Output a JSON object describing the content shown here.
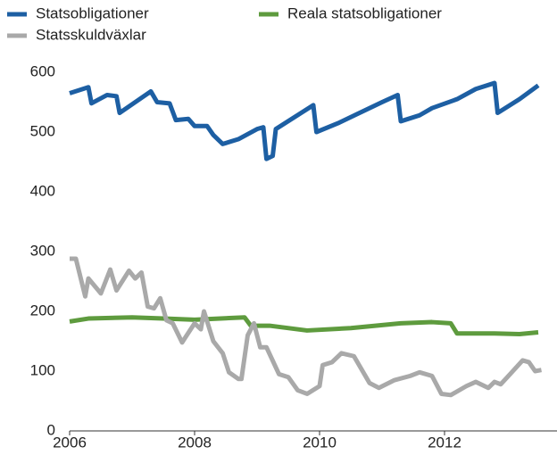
{
  "chart_data": {
    "type": "line",
    "series": [
      {
        "name": "Statsobligationer",
        "color": "#1d5fa3",
        "x": [
          2006,
          2006.3,
          2006.35,
          2006.6,
          2006.75,
          2006.8,
          2007.3,
          2007.4,
          2007.6,
          2007.7,
          2007.9,
          2008,
          2008.2,
          2008.3,
          2008.45,
          2008.7,
          2009,
          2009.1,
          2009.15,
          2009.25,
          2009.3,
          2009.6,
          2009.9,
          2009.95,
          2010.3,
          2010.6,
          2011,
          2011.25,
          2011.3,
          2011.6,
          2011.8,
          2012.2,
          2012.5,
          2012.8,
          2012.85,
          2013.2,
          2013.5
        ],
        "values": [
          565,
          575,
          548,
          562,
          560,
          532,
          568,
          550,
          548,
          520,
          522,
          510,
          510,
          495,
          480,
          488,
          505,
          508,
          455,
          460,
          505,
          525,
          545,
          500,
          515,
          530,
          550,
          562,
          518,
          528,
          540,
          555,
          572,
          582,
          532,
          555,
          578
        ]
      },
      {
        "name": "Reala statsobligationer",
        "color": "#5e9b3e",
        "x": [
          2006,
          2006.3,
          2007,
          2007.5,
          2008,
          2008.8,
          2008.9,
          2009.2,
          2009.8,
          2010.5,
          2011.3,
          2011.8,
          2012.1,
          2012.2,
          2012.8,
          2013.2,
          2013.5
        ],
        "values": [
          183,
          188,
          190,
          188,
          186,
          190,
          176,
          176,
          168,
          172,
          180,
          182,
          180,
          163,
          163,
          162,
          165
        ]
      },
      {
        "name": "Statsskuldväxlar",
        "color": "#a9a9a9",
        "x": [
          2006,
          2006.1,
          2006.25,
          2006.3,
          2006.5,
          2006.65,
          2006.75,
          2006.95,
          2007.05,
          2007.15,
          2007.25,
          2007.35,
          2007.45,
          2007.55,
          2007.65,
          2007.8,
          2008,
          2008.1,
          2008.15,
          2008.3,
          2008.45,
          2008.55,
          2008.7,
          2008.75,
          2008.85,
          2008.95,
          2009.05,
          2009.15,
          2009.35,
          2009.5,
          2009.65,
          2009.8,
          2010,
          2010.05,
          2010.2,
          2010.35,
          2010.55,
          2010.8,
          2010.95,
          2011.2,
          2011.45,
          2011.6,
          2011.8,
          2011.95,
          2012.1,
          2012.35,
          2012.5,
          2012.7,
          2012.8,
          2012.9,
          2013.05,
          2013.25,
          2013.35,
          2013.45,
          2013.55
        ],
        "values": [
          288,
          288,
          225,
          255,
          230,
          270,
          235,
          268,
          255,
          265,
          208,
          205,
          222,
          185,
          180,
          148,
          180,
          170,
          200,
          150,
          130,
          98,
          87,
          87,
          160,
          180,
          140,
          140,
          95,
          90,
          68,
          62,
          75,
          110,
          115,
          130,
          125,
          80,
          72,
          85,
          92,
          98,
          92,
          62,
          60,
          75,
          82,
          72,
          82,
          78,
          95,
          118,
          115,
          100,
          102
        ]
      }
    ],
    "xlim": [
      2006,
      2013.8
    ],
    "xticks": [
      2006,
      2008,
      2010,
      2012
    ],
    "ylim": [
      0,
      600
    ],
    "yticks": [
      0,
      100,
      200,
      300,
      400,
      500,
      600
    ],
    "grid": false
  }
}
